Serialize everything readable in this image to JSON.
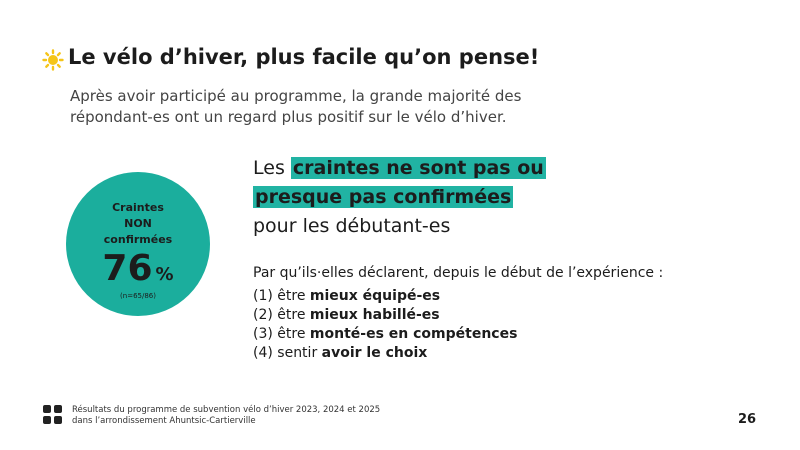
{
  "header": {
    "title": "Le vélo d’hiver, plus facile qu’on pense!",
    "subtitle": "Après avoir participé au programme, la grande majorité des répondant-es ont un regard plus positif sur le vélo d’hiver."
  },
  "stat": {
    "label_lines": [
      "Craintes",
      "NON",
      "confirmées"
    ],
    "value": 76,
    "unit": "%",
    "note": "(n=65/86)"
  },
  "headline": {
    "before": "Les",
    "highlight_lines": [
      "craintes ne sont pas ou",
      "presque pas confirmées"
    ],
    "after": "pour les débutant-es"
  },
  "list": {
    "intro": "Par qu’ils·elles déclarent, depuis le début de l’expérience :",
    "items": [
      {
        "prefix": "(1) être",
        "bold": "mieux équipé-es"
      },
      {
        "prefix": "(2) être",
        "bold": "mieux habillé-es"
      },
      {
        "prefix": "(3) être",
        "bold": "monté-es en compétences"
      },
      {
        "prefix": "(4) sentir",
        "bold": "avoir le choix"
      }
    ]
  },
  "footer": {
    "lines": [
      "Résultats du programme de subvention vélo d’hiver 2023, 2024 et 2025",
      "dans l’arrondissement Ahuntsic-Cartierville"
    ],
    "page": "26"
  }
}
